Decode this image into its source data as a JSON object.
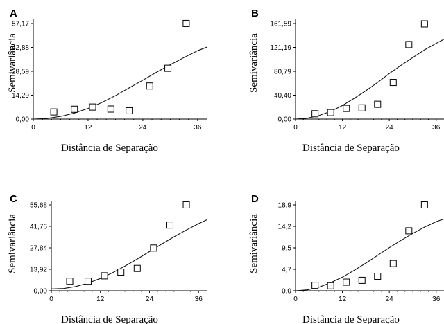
{
  "chart_data": [
    {
      "type": "scatter",
      "panel": "A",
      "xlabel": "Distância de Separação",
      "ylabel": "Semivariância",
      "xticks": [
        "0",
        "12",
        "24",
        "36"
      ],
      "yticks": [
        "0,00",
        "14,29",
        "28,59",
        "42,88",
        "57,17"
      ],
      "xlim": [
        0,
        38
      ],
      "ylim": [
        0,
        57.17
      ],
      "x": [
        4.5,
        9.0,
        13.0,
        17.0,
        21.0,
        25.5,
        29.5,
        33.5
      ],
      "y": [
        4.3,
        5.9,
        7.2,
        6.0,
        5.0,
        19.8,
        30.4,
        57.2
      ],
      "model_curve": {
        "x": [
          0,
          3,
          6,
          9,
          12,
          15,
          18,
          21,
          24,
          27,
          30,
          33,
          36,
          38
        ],
        "y": [
          0,
          0.4,
          1.6,
          3.6,
          6.4,
          9.9,
          14.0,
          18.7,
          23.3,
          28.0,
          32.5,
          36.8,
          40.9,
          43.0
        ]
      }
    },
    {
      "type": "scatter",
      "panel": "B",
      "xlabel": "Distância de Separação",
      "ylabel": "Semivariância",
      "xticks": [
        "0",
        "12",
        "24",
        "36"
      ],
      "yticks": [
        "0,00",
        "40,40",
        "80,79",
        "121,19",
        "161,59"
      ],
      "xlim": [
        0,
        38
      ],
      "ylim": [
        0,
        161.59
      ],
      "x": [
        5.0,
        9.0,
        13.0,
        17.0,
        21.0,
        25.0,
        29.0,
        33.0
      ],
      "y": [
        9,
        11,
        18,
        19,
        25,
        62,
        126,
        161
      ],
      "model_curve": {
        "x": [
          0,
          3,
          6,
          9,
          12,
          15,
          18,
          21,
          24,
          27,
          30,
          33,
          36,
          38
        ],
        "y": [
          0,
          1.5,
          6,
          13,
          23,
          35,
          48,
          62,
          77,
          91,
          104,
          117,
          128,
          135
        ]
      }
    },
    {
      "type": "scatter",
      "panel": "C",
      "xlabel": "Distância de Separação",
      "ylabel": "Semivariância",
      "xticks": [
        "0",
        "12",
        "24",
        "36"
      ],
      "yticks": [
        "0,00",
        "13,92",
        "27,84",
        "41,76",
        "55,68"
      ],
      "xlim": [
        0,
        38
      ],
      "ylim": [
        0,
        55.68
      ],
      "x": [
        4.5,
        9.0,
        13.0,
        17.0,
        21.0,
        25.0,
        29.0,
        33.0
      ],
      "y": [
        6.2,
        6.2,
        9.7,
        12.1,
        14.5,
        27.7,
        42.6,
        55.7
      ],
      "model_curve": {
        "x": [
          0,
          3,
          6,
          9,
          12,
          15,
          18,
          21,
          24,
          27,
          30,
          33,
          36,
          38
        ],
        "y": [
          1.2,
          1.5,
          2.8,
          5.0,
          8.0,
          11.7,
          16.0,
          20.6,
          25.4,
          30.3,
          35.0,
          39.4,
          43.5,
          46.0
        ]
      }
    },
    {
      "type": "scatter",
      "panel": "D",
      "xlabel": "Distância de Separação",
      "ylabel": "Semivariância",
      "xticks": [
        "0",
        "12",
        "24",
        "36"
      ],
      "yticks": [
        "0,0",
        "4,7",
        "9,5",
        "14,2",
        "18,9"
      ],
      "xlim": [
        0,
        38
      ],
      "ylim": [
        0,
        18.9
      ],
      "x": [
        5.0,
        9.0,
        13.0,
        17.0,
        21.0,
        25.0,
        29.0,
        33.0
      ],
      "y": [
        1.2,
        1.1,
        1.9,
        2.3,
        3.2,
        6.0,
        13.2,
        18.9
      ],
      "model_curve": {
        "x": [
          0,
          3,
          6,
          9,
          12,
          15,
          18,
          21,
          24,
          27,
          30,
          33,
          36,
          38
        ],
        "y": [
          0,
          0.2,
          0.8,
          1.8,
          3.0,
          4.5,
          6.1,
          7.8,
          9.5,
          11.1,
          12.6,
          14.0,
          15.2,
          15.8
        ]
      }
    }
  ]
}
